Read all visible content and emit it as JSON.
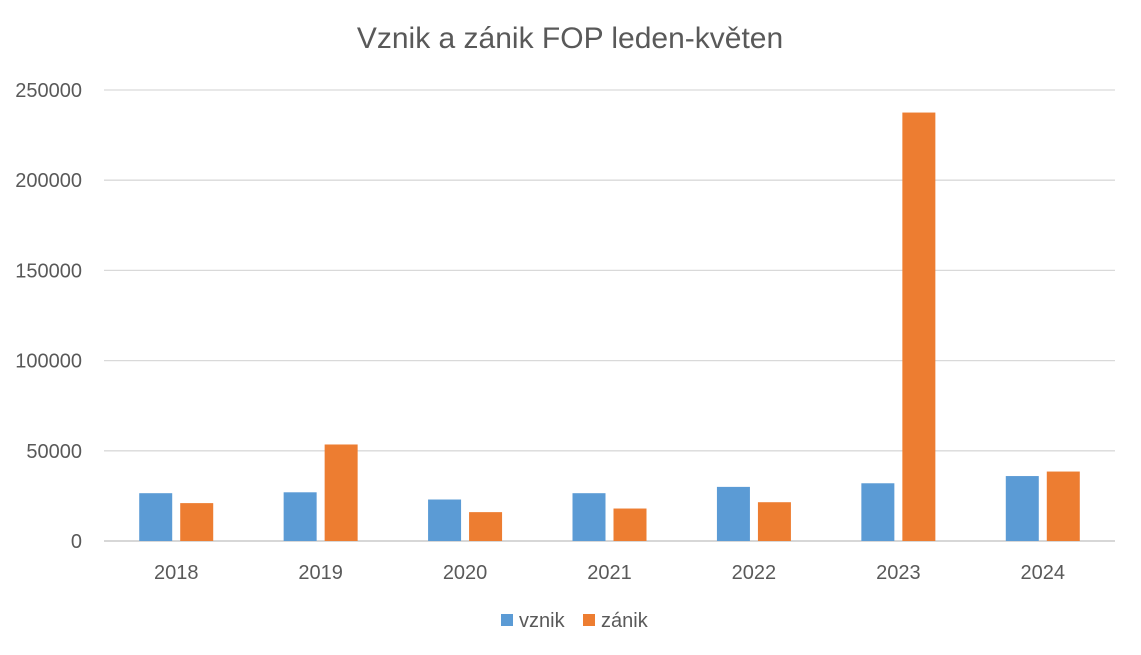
{
  "chart_data": {
    "type": "bar",
    "title": "Vznik a zánik FOP leden-květen",
    "xlabel": "",
    "ylabel": "",
    "categories": [
      "2018",
      "2019",
      "2020",
      "2021",
      "2022",
      "2023",
      "2024"
    ],
    "series": [
      {
        "name": "vznik",
        "color": "#5B9BD5",
        "values": [
          26500,
          27000,
          23000,
          26500,
          30000,
          32000,
          36000
        ]
      },
      {
        "name": "zánik",
        "color": "#ED7D31",
        "values": [
          21000,
          53500,
          16000,
          18000,
          21500,
          237500,
          38500
        ]
      }
    ],
    "ylim": [
      0,
      250000
    ],
    "yticks": [
      "0",
      "50000",
      "100000",
      "150000",
      "200000",
      "250000"
    ],
    "ytick_values": [
      0,
      50000,
      100000,
      150000,
      200000,
      250000
    ],
    "grid": true,
    "legend_position": "bottom",
    "gridline_color": "#D9D9D9",
    "axis_color": "#BFBFBF"
  }
}
